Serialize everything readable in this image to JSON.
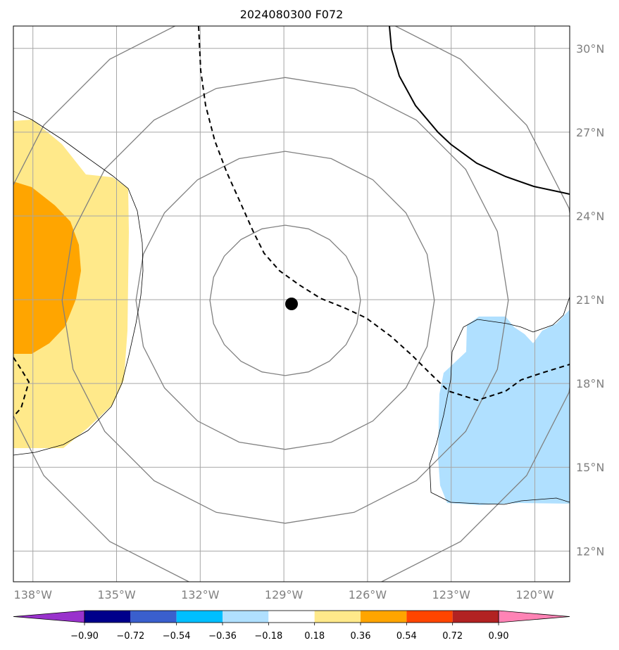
{
  "title": "2024080300 F072",
  "lon_ticks": [
    {
      "lon": -138,
      "label": "138°W"
    },
    {
      "lon": -135,
      "label": "135°W"
    },
    {
      "lon": -132,
      "label": "132°W"
    },
    {
      "lon": -129,
      "label": "129°W"
    },
    {
      "lon": -126,
      "label": "126°W"
    },
    {
      "lon": -123,
      "label": "123°W"
    },
    {
      "lon": -120,
      "label": "120°W"
    }
  ],
  "lat_ticks": [
    {
      "lat": 30,
      "label": "30°N"
    },
    {
      "lat": 27,
      "label": "27°N"
    },
    {
      "lat": 24,
      "label": "24°N"
    },
    {
      "lat": 21,
      "label": "21°N"
    },
    {
      "lat": 18,
      "label": "18°N"
    },
    {
      "lat": 15,
      "label": "15°N"
    },
    {
      "lat": 12,
      "label": "12°N"
    }
  ],
  "extent": {
    "lon_min": -138.7,
    "lon_max": -118.75,
    "lat_min": 10.9,
    "lat_max": 30.8
  },
  "storm_center": {
    "lon": -128.7,
    "lat": 20.8
  },
  "range_ring_radii_deg": [
    2.7,
    5.35,
    8.0,
    10.7
  ],
  "colorbar": {
    "levels": [
      "−0.90",
      "−0.72",
      "−0.54",
      "−0.36",
      "−0.18",
      "0.18",
      "0.36",
      "0.54",
      "0.72",
      "0.90"
    ],
    "colors": [
      "#9932cc",
      "#00008b",
      "#3a5fcd",
      "#00bfff",
      "#b0e0ff",
      "#ffffff",
      "#ffe98a",
      "#ffa500",
      "#ff4500",
      "#b22222",
      "#ff83b5"
    ]
  }
}
